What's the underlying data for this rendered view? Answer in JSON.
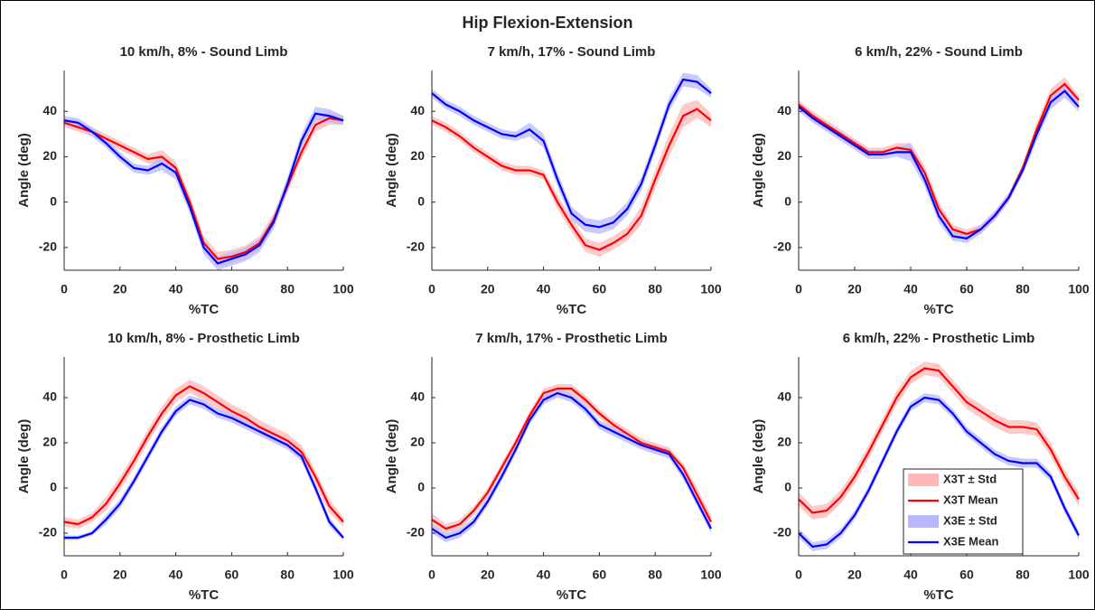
{
  "title": "Hip Flexion-Extension",
  "chart_data": [
    {
      "type": "line",
      "title": "10 km/h, 8% - Sound Limb",
      "xlabel": "%TC",
      "ylabel": "Angle (deg)",
      "x": [
        0,
        5,
        10,
        15,
        20,
        25,
        30,
        35,
        40,
        45,
        50,
        55,
        60,
        65,
        70,
        75,
        80,
        85,
        90,
        95,
        100
      ],
      "xlim": [
        0,
        100
      ],
      "xticks": [
        0,
        20,
        40,
        60,
        80,
        100
      ],
      "ylim": [
        -30,
        58
      ],
      "yticks": [
        -20,
        0,
        20,
        40
      ],
      "series": [
        {
          "color": "#ff0000",
          "band_color": "#ffb8b8",
          "values": [
            35,
            33,
            31,
            28,
            25,
            22,
            19,
            20,
            15,
            0,
            -18,
            -25,
            -24,
            -22,
            -18,
            -8,
            7,
            22,
            34,
            37,
            36
          ],
          "std": [
            2,
            2,
            2,
            2,
            2,
            2,
            2,
            3,
            3,
            3,
            3,
            3,
            3,
            3,
            3,
            3,
            3,
            3,
            3,
            3,
            2
          ]
        },
        {
          "color": "#0000ff",
          "band_color": "#b8b8ff",
          "values": [
            36,
            35,
            31,
            26,
            20,
            15,
            14,
            17,
            13,
            -2,
            -20,
            -27,
            -25,
            -23,
            -19,
            -9,
            8,
            27,
            39,
            38,
            36
          ],
          "std": [
            2,
            2,
            2,
            2,
            2,
            2,
            2,
            3,
            3,
            3,
            3,
            3,
            3,
            3,
            3,
            3,
            3,
            3,
            3,
            3,
            2
          ]
        }
      ]
    },
    {
      "type": "line",
      "title": "7 km/h, 17% - Sound Limb",
      "xlabel": "%TC",
      "ylabel": "Angle (deg)",
      "x": [
        0,
        5,
        10,
        15,
        20,
        25,
        30,
        35,
        40,
        45,
        50,
        55,
        60,
        65,
        70,
        75,
        80,
        85,
        90,
        95,
        100
      ],
      "xlim": [
        0,
        100
      ],
      "xticks": [
        0,
        20,
        40,
        60,
        80,
        100
      ],
      "ylim": [
        -30,
        58
      ],
      "yticks": [
        -20,
        0,
        20,
        40
      ],
      "series": [
        {
          "color": "#ff0000",
          "band_color": "#ffb8b8",
          "values": [
            36,
            33,
            29,
            24,
            20,
            16,
            14,
            14,
            12,
            0,
            -10,
            -19,
            -21,
            -18,
            -14,
            -6,
            10,
            25,
            38,
            41,
            36
          ],
          "std": [
            2,
            2,
            2,
            2,
            2,
            2,
            2,
            2,
            2,
            3,
            3,
            3,
            3,
            3,
            3,
            4,
            4,
            5,
            5,
            4,
            3
          ]
        },
        {
          "color": "#0000ff",
          "band_color": "#b8b8ff",
          "values": [
            48,
            43,
            40,
            36,
            33,
            30,
            29,
            32,
            27,
            10,
            -5,
            -10,
            -11,
            -9,
            -3,
            8,
            25,
            43,
            54,
            53,
            48
          ],
          "std": [
            2,
            2,
            2,
            2,
            2,
            2,
            2,
            3,
            3,
            3,
            3,
            3,
            3,
            3,
            3,
            3,
            3,
            3,
            3,
            3,
            2
          ]
        }
      ]
    },
    {
      "type": "line",
      "title": "6 km/h, 22% - Sound Limb",
      "xlabel": "%TC",
      "ylabel": "Angle (deg)",
      "x": [
        0,
        5,
        10,
        15,
        20,
        25,
        30,
        35,
        40,
        45,
        50,
        55,
        60,
        65,
        70,
        75,
        80,
        85,
        90,
        95,
        100
      ],
      "xlim": [
        0,
        100
      ],
      "xticks": [
        0,
        20,
        40,
        60,
        80,
        100
      ],
      "ylim": [
        -30,
        58
      ],
      "yticks": [
        -20,
        0,
        20,
        40
      ],
      "series": [
        {
          "color": "#ff0000",
          "band_color": "#ffb8b8",
          "values": [
            43,
            38,
            34,
            30,
            26,
            22,
            22,
            24,
            23,
            13,
            -3,
            -12,
            -14,
            -12,
            -6,
            2,
            15,
            32,
            47,
            52,
            45
          ],
          "std": [
            2,
            2,
            2,
            2,
            2,
            2,
            2,
            2,
            3,
            3,
            3,
            2,
            2,
            2,
            2,
            2,
            2,
            3,
            3,
            3,
            2
          ]
        },
        {
          "color": "#0000ff",
          "band_color": "#b8b8ff",
          "values": [
            42,
            37,
            33,
            29,
            25,
            21,
            21,
            22,
            22,
            10,
            -6,
            -15,
            -16,
            -12,
            -6,
            2,
            14,
            30,
            44,
            49,
            42
          ],
          "std": [
            2,
            2,
            2,
            2,
            2,
            2,
            2,
            2,
            4,
            3,
            3,
            2,
            2,
            2,
            2,
            2,
            2,
            3,
            3,
            3,
            2
          ]
        }
      ]
    },
    {
      "type": "line",
      "title": "10 km/h, 8% - Prosthetic Limb",
      "xlabel": "%TC",
      "ylabel": "Angle (deg)",
      "x": [
        0,
        5,
        10,
        15,
        20,
        25,
        30,
        35,
        40,
        45,
        50,
        55,
        60,
        65,
        70,
        75,
        80,
        85,
        90,
        95,
        100
      ],
      "xlim": [
        0,
        100
      ],
      "xticks": [
        0,
        20,
        40,
        60,
        80,
        100
      ],
      "ylim": [
        -30,
        58
      ],
      "yticks": [
        -20,
        0,
        20,
        40
      ],
      "series": [
        {
          "color": "#ff0000",
          "band_color": "#ffb8b8",
          "values": [
            -15,
            -16,
            -13,
            -7,
            2,
            12,
            23,
            33,
            41,
            45,
            42,
            38,
            34,
            31,
            27,
            24,
            21,
            16,
            5,
            -8,
            -15
          ],
          "std": [
            2,
            2,
            2,
            3,
            3,
            3,
            3,
            3,
            3,
            3,
            3,
            3,
            3,
            3,
            3,
            3,
            3,
            3,
            3,
            3,
            2
          ]
        },
        {
          "color": "#0000ff",
          "band_color": "#b8b8ff",
          "values": [
            -22,
            -22,
            -20,
            -14,
            -7,
            3,
            14,
            25,
            34,
            39,
            37,
            33,
            31,
            28,
            25,
            22,
            19,
            14,
            0,
            -15,
            -22
          ],
          "std": [
            1,
            1,
            1,
            2,
            2,
            2,
            2,
            2,
            2,
            2,
            2,
            2,
            2,
            2,
            2,
            2,
            2,
            2,
            2,
            2,
            1
          ]
        }
      ]
    },
    {
      "type": "line",
      "title": "7 km/h, 17% - Prosthetic Limb",
      "xlabel": "%TC",
      "ylabel": "Angle (deg)",
      "x": [
        0,
        5,
        10,
        15,
        20,
        25,
        30,
        35,
        40,
        45,
        50,
        55,
        60,
        65,
        70,
        75,
        80,
        85,
        90,
        95,
        100
      ],
      "xlim": [
        0,
        100
      ],
      "xticks": [
        0,
        20,
        40,
        60,
        80,
        100
      ],
      "ylim": [
        -30,
        58
      ],
      "yticks": [
        -20,
        0,
        20,
        40
      ],
      "series": [
        {
          "color": "#ff0000",
          "band_color": "#ffb8b8",
          "values": [
            -14,
            -18,
            -16,
            -10,
            -2,
            9,
            20,
            32,
            42,
            44,
            44,
            39,
            33,
            28,
            24,
            20,
            18,
            16,
            9,
            -3,
            -15
          ],
          "std": [
            3,
            2,
            2,
            2,
            2,
            2,
            2,
            2,
            2,
            2,
            2,
            2,
            2,
            2,
            2,
            2,
            2,
            2,
            2,
            3,
            3
          ]
        },
        {
          "color": "#0000ff",
          "band_color": "#b8b8ff",
          "values": [
            -18,
            -22,
            -20,
            -15,
            -6,
            5,
            17,
            30,
            39,
            42,
            40,
            35,
            28,
            25,
            22,
            19,
            17,
            15,
            6,
            -6,
            -18
          ],
          "std": [
            2,
            2,
            2,
            2,
            2,
            2,
            2,
            2,
            2,
            2,
            2,
            2,
            2,
            2,
            2,
            2,
            2,
            2,
            2,
            2,
            2
          ]
        }
      ]
    },
    {
      "type": "line",
      "title": "6 km/h, 22% - Prosthetic Limb",
      "xlabel": "%TC",
      "ylabel": "Angle (deg)",
      "x": [
        0,
        5,
        10,
        15,
        20,
        25,
        30,
        35,
        40,
        45,
        50,
        55,
        60,
        65,
        70,
        75,
        80,
        85,
        90,
        95,
        100
      ],
      "xlim": [
        0,
        100
      ],
      "xticks": [
        0,
        20,
        40,
        60,
        80,
        100
      ],
      "ylim": [
        -30,
        58
      ],
      "yticks": [
        -20,
        0,
        20,
        40
      ],
      "legend": "lower right",
      "series": [
        {
          "name": "X3T Mean",
          "band_name": "X3T ± Std",
          "color": "#ff0000",
          "band_color": "#ffb8b8",
          "values": [
            -5,
            -11,
            -10,
            -4,
            5,
            16,
            28,
            40,
            49,
            53,
            52,
            45,
            38,
            34,
            30,
            27,
            27,
            26,
            17,
            5,
            -5
          ],
          "std": [
            3,
            3,
            3,
            3,
            3,
            3,
            3,
            3,
            3,
            3,
            3,
            3,
            3,
            3,
            3,
            3,
            3,
            3,
            3,
            3,
            3
          ]
        },
        {
          "name": "X3E Mean",
          "band_name": "X3E ± Std",
          "color": "#0000ff",
          "band_color": "#b8b8ff",
          "values": [
            -20,
            -26,
            -25,
            -20,
            -12,
            -1,
            12,
            25,
            36,
            40,
            39,
            33,
            25,
            20,
            15,
            12,
            11,
            11,
            5,
            -9,
            -21
          ],
          "std": [
            2,
            2,
            2,
            2,
            2,
            2,
            2,
            2,
            2,
            2,
            2,
            2,
            2,
            2,
            2,
            2,
            2,
            2,
            2,
            2,
            2
          ]
        }
      ]
    }
  ]
}
